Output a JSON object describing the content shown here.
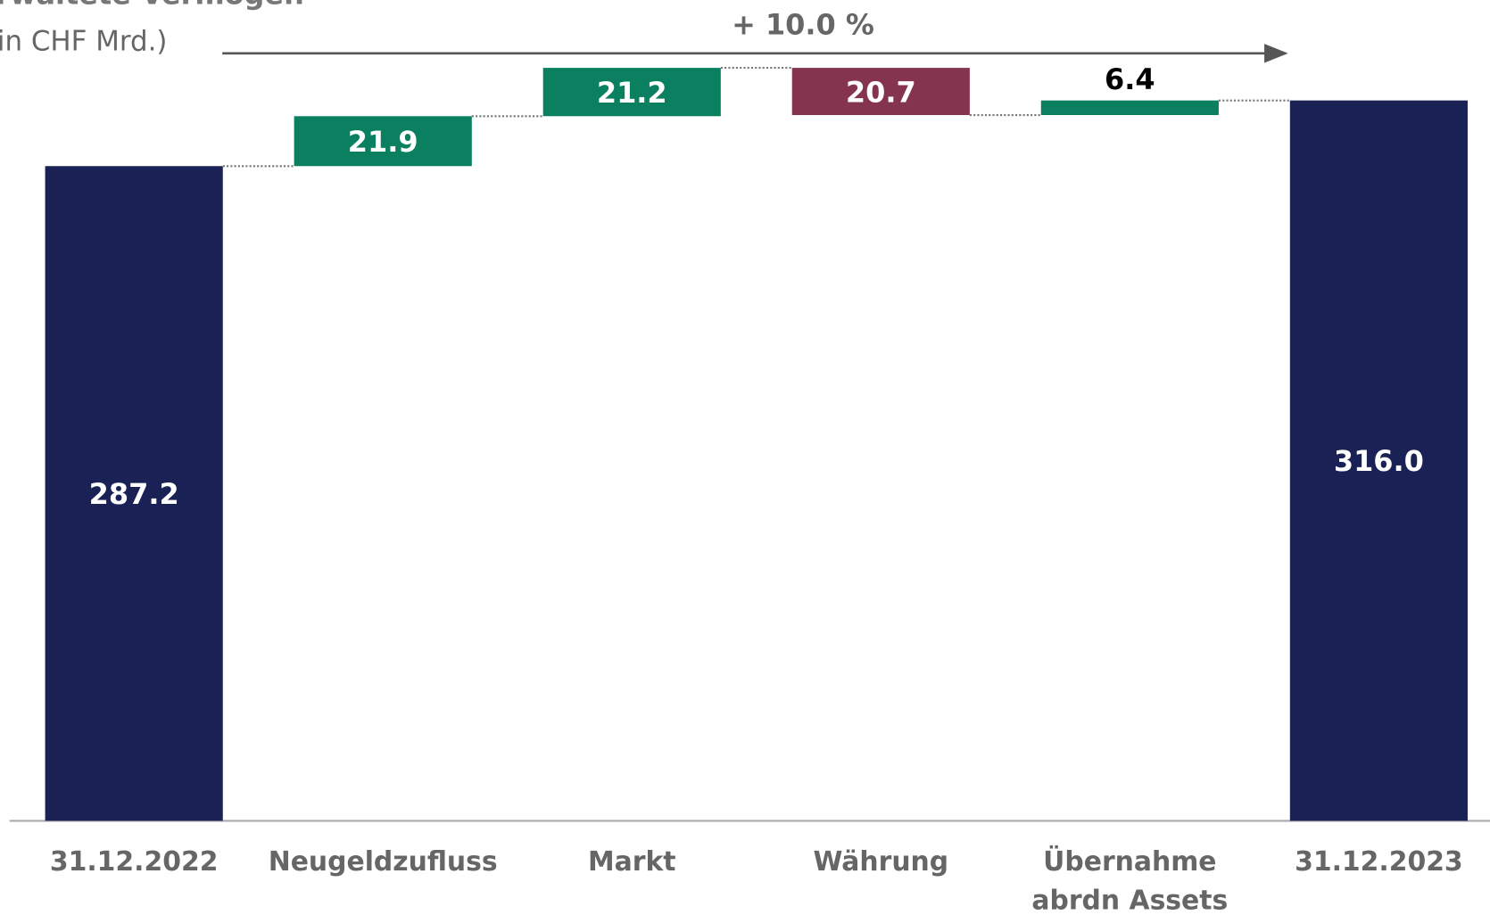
{
  "chart_data": {
    "type": "waterfall",
    "title": "Verwaltete Vermögen",
    "subtitle": "(in CHF Mrd.)",
    "annotation": "+ 10.0 %",
    "categories": [
      "31.12.2022",
      "Neugeldzufluss",
      "Markt",
      "Währung",
      [
        "Übernahme",
        "abrdn Assets"
      ],
      "31.12.2023"
    ],
    "values": [
      287.2,
      21.9,
      21.2,
      -20.7,
      6.4,
      316.0
    ],
    "value_labels": [
      "287.2",
      "21.9",
      "21.2",
      "20.7",
      "6.4",
      "316.0"
    ],
    "colors": [
      "#1a2155",
      "#0b8060",
      "#0b8060",
      "#85344f",
      "#0b8060",
      "#1a2155"
    ],
    "ylim": [
      0,
      360
    ]
  }
}
